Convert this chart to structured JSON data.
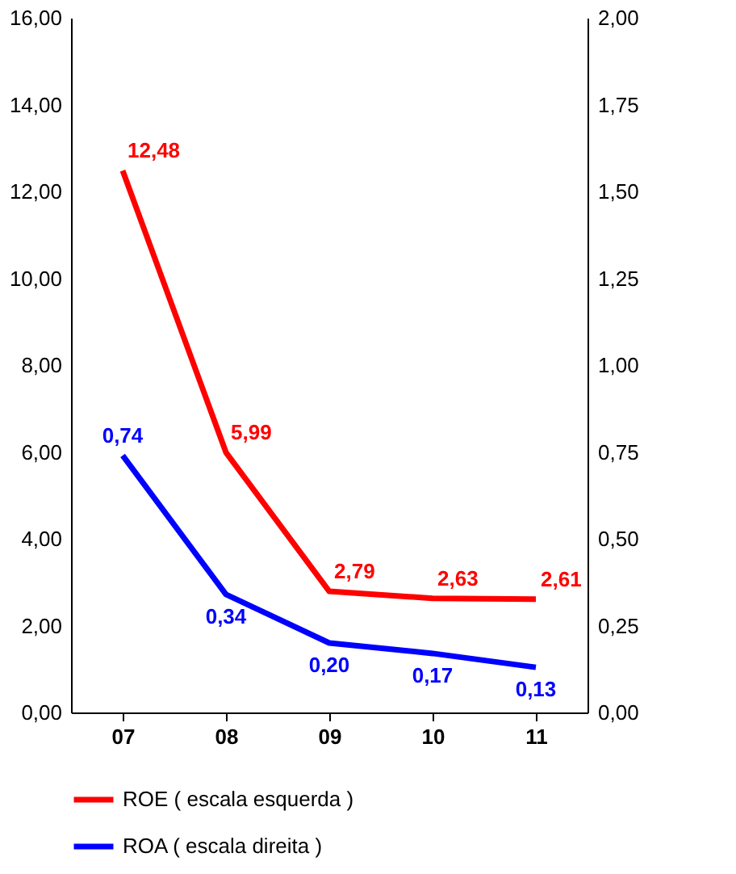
{
  "chart_data": {
    "type": "line",
    "categories": [
      "07",
      "08",
      "09",
      "10",
      "11"
    ],
    "series": [
      {
        "name": "ROE ( escala esquerda )",
        "color": "#ff0000",
        "values": [
          12.48,
          5.99,
          2.79,
          2.63,
          2.61
        ],
        "value_labels": [
          "12,48",
          "5,99",
          "2,79",
          "2,63",
          "2,61"
        ]
      },
      {
        "name": "ROA ( escala direita )",
        "color": "#0000ff",
        "values": [
          0.74,
          0.34,
          0.2,
          0.17,
          0.13
        ],
        "value_labels": [
          "0,74",
          "0,34",
          "0,20",
          "0,17",
          "0,13"
        ],
        "axis": "y2"
      }
    ],
    "ylim": [
      0,
      16
    ],
    "yticks": [
      {
        "value": 0,
        "label": "0,00"
      },
      {
        "value": 2,
        "label": "2,00"
      },
      {
        "value": 4,
        "label": "4,00"
      },
      {
        "value": 6,
        "label": "6,00"
      },
      {
        "value": 8,
        "label": "8,00"
      },
      {
        "value": 10,
        "label": "10,00"
      },
      {
        "value": 12,
        "label": "12,00"
      },
      {
        "value": 14,
        "label": "14,00"
      },
      {
        "value": 16,
        "label": "16,00"
      }
    ],
    "y2lim": [
      0,
      2
    ],
    "y2ticks": [
      {
        "value": 0,
        "label": "0,00"
      },
      {
        "value": 0.25,
        "label": "0,25"
      },
      {
        "value": 0.5,
        "label": "0,50"
      },
      {
        "value": 0.75,
        "label": "0,75"
      },
      {
        "value": 1,
        "label": "1,00"
      },
      {
        "value": 1.25,
        "label": "1,25"
      },
      {
        "value": 1.5,
        "label": "1,50"
      },
      {
        "value": 1.75,
        "label": "1,75"
      },
      {
        "value": 2,
        "label": "2,00"
      }
    ],
    "legend": "bottom",
    "grid": false,
    "marker": "none",
    "line_style": "solid"
  }
}
